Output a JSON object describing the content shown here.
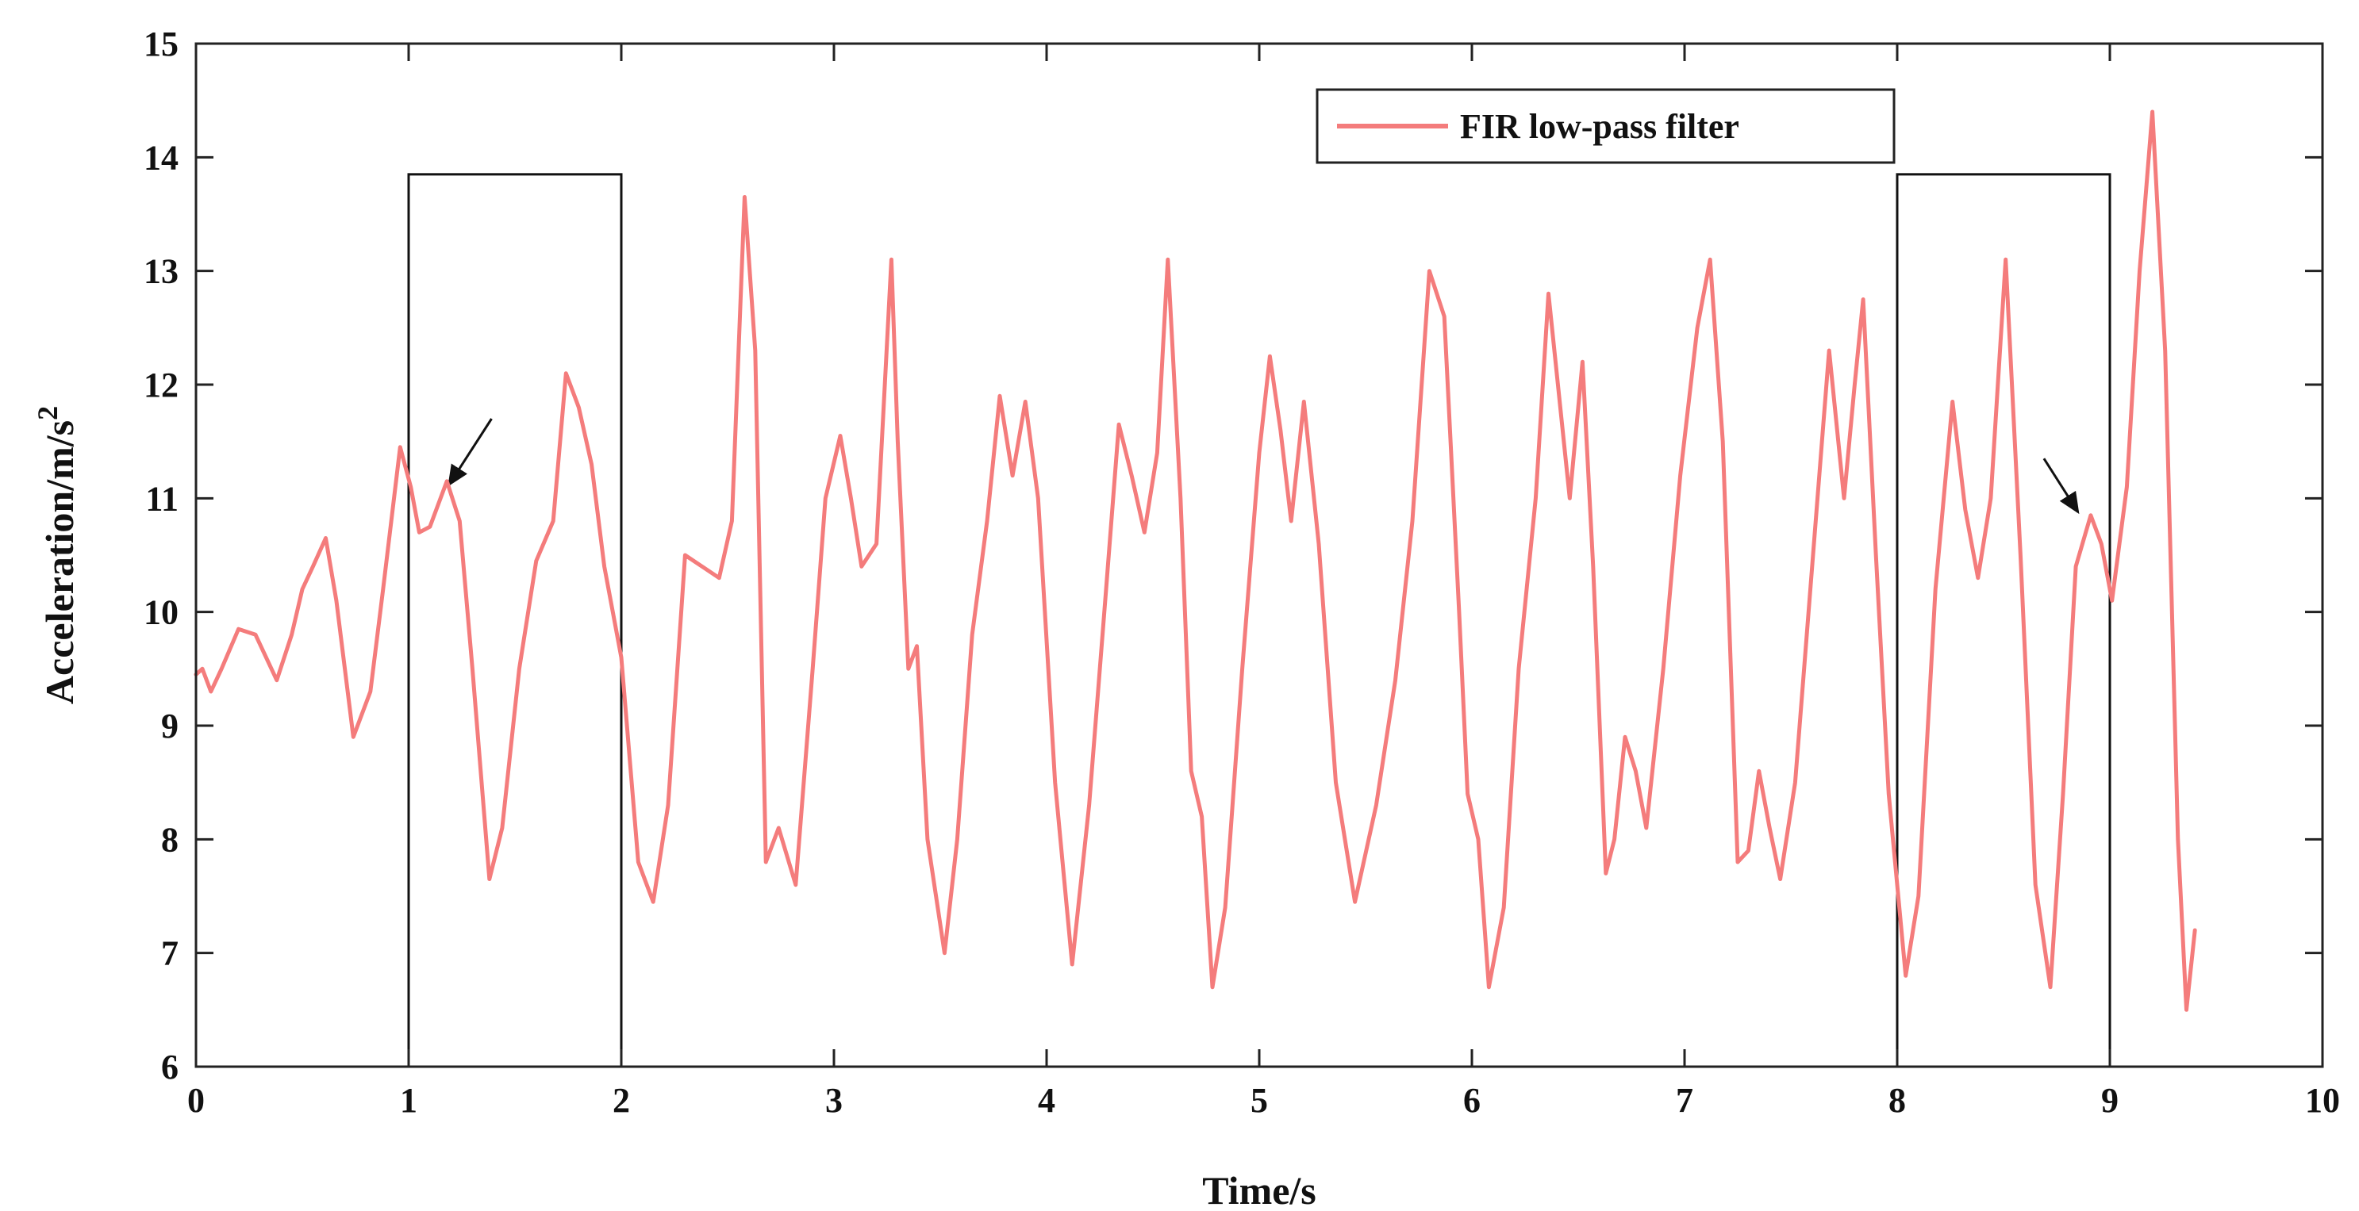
{
  "chart_data": {
    "type": "line",
    "title": "",
    "xlabel": "Time/s",
    "ylabel": "Acceleration/m/s",
    "ylabel_superscript": "2",
    "xlim": [
      0,
      10
    ],
    "ylim": [
      6,
      15
    ],
    "xticks": [
      "0",
      "1",
      "2",
      "3",
      "4",
      "5",
      "6",
      "7",
      "8",
      "9",
      "10"
    ],
    "yticks": [
      "6",
      "7",
      "8",
      "9",
      "10",
      "11",
      "12",
      "13",
      "14",
      "15"
    ],
    "grid": false,
    "legend": {
      "label": "FIR low-pass filter",
      "placement": "top-right"
    },
    "series": [
      {
        "name": "FIR low-pass filter",
        "color": "#f47c7c",
        "points": [
          [
            0.0,
            9.45
          ],
          [
            0.03,
            9.5
          ],
          [
            0.07,
            9.3
          ],
          [
            0.12,
            9.5
          ],
          [
            0.2,
            9.85
          ],
          [
            0.28,
            9.8
          ],
          [
            0.38,
            9.4
          ],
          [
            0.45,
            9.8
          ],
          [
            0.5,
            10.2
          ],
          [
            0.55,
            10.4
          ],
          [
            0.61,
            10.65
          ],
          [
            0.66,
            10.1
          ],
          [
            0.74,
            8.9
          ],
          [
            0.82,
            9.3
          ],
          [
            0.88,
            10.2
          ],
          [
            0.96,
            11.45
          ],
          [
            1.01,
            11.1
          ],
          [
            1.05,
            10.7
          ],
          [
            1.1,
            10.75
          ],
          [
            1.18,
            11.15
          ],
          [
            1.24,
            10.8
          ],
          [
            1.3,
            9.5
          ],
          [
            1.38,
            7.65
          ],
          [
            1.44,
            8.1
          ],
          [
            1.52,
            9.5
          ],
          [
            1.6,
            10.45
          ],
          [
            1.68,
            10.8
          ],
          [
            1.74,
            12.1
          ],
          [
            1.8,
            11.8
          ],
          [
            1.86,
            11.3
          ],
          [
            1.92,
            10.4
          ],
          [
            2.0,
            9.6
          ],
          [
            2.08,
            7.8
          ],
          [
            2.15,
            7.45
          ],
          [
            2.22,
            8.3
          ],
          [
            2.3,
            10.5
          ],
          [
            2.38,
            10.4
          ],
          [
            2.46,
            10.3
          ],
          [
            2.52,
            10.8
          ],
          [
            2.58,
            13.65
          ],
          [
            2.63,
            12.3
          ],
          [
            2.68,
            7.8
          ],
          [
            2.74,
            8.1
          ],
          [
            2.82,
            7.6
          ],
          [
            2.9,
            9.5
          ],
          [
            2.96,
            11.0
          ],
          [
            3.03,
            11.55
          ],
          [
            3.08,
            11.0
          ],
          [
            3.13,
            10.4
          ],
          [
            3.2,
            10.6
          ],
          [
            3.27,
            13.1
          ],
          [
            3.3,
            11.5
          ],
          [
            3.35,
            9.5
          ],
          [
            3.39,
            9.7
          ],
          [
            3.44,
            8.0
          ],
          [
            3.52,
            7.0
          ],
          [
            3.58,
            8.0
          ],
          [
            3.65,
            9.8
          ],
          [
            3.72,
            10.8
          ],
          [
            3.78,
            11.9
          ],
          [
            3.84,
            11.2
          ],
          [
            3.9,
            11.85
          ],
          [
            3.96,
            11.0
          ],
          [
            4.04,
            8.5
          ],
          [
            4.12,
            6.9
          ],
          [
            4.2,
            8.3
          ],
          [
            4.28,
            10.2
          ],
          [
            4.34,
            11.65
          ],
          [
            4.4,
            11.2
          ],
          [
            4.46,
            10.7
          ],
          [
            4.52,
            11.4
          ],
          [
            4.57,
            13.1
          ],
          [
            4.63,
            11.0
          ],
          [
            4.68,
            8.6
          ],
          [
            4.73,
            8.2
          ],
          [
            4.78,
            6.7
          ],
          [
            4.84,
            7.4
          ],
          [
            4.92,
            9.5
          ],
          [
            5.0,
            11.4
          ],
          [
            5.05,
            12.25
          ],
          [
            5.1,
            11.6
          ],
          [
            5.15,
            10.8
          ],
          [
            5.21,
            11.85
          ],
          [
            5.28,
            10.6
          ],
          [
            5.36,
            8.5
          ],
          [
            5.45,
            7.45
          ],
          [
            5.55,
            8.3
          ],
          [
            5.64,
            9.4
          ],
          [
            5.72,
            10.8
          ],
          [
            5.8,
            13.0
          ],
          [
            5.87,
            12.6
          ],
          [
            5.94,
            10.0
          ],
          [
            5.98,
            8.4
          ],
          [
            6.03,
            8.0
          ],
          [
            6.08,
            6.7
          ],
          [
            6.15,
            7.4
          ],
          [
            6.22,
            9.5
          ],
          [
            6.3,
            11.0
          ],
          [
            6.36,
            12.8
          ],
          [
            6.41,
            11.9
          ],
          [
            6.46,
            11.0
          ],
          [
            6.52,
            12.2
          ],
          [
            6.57,
            10.4
          ],
          [
            6.63,
            7.7
          ],
          [
            6.67,
            8.0
          ],
          [
            6.72,
            8.9
          ],
          [
            6.77,
            8.6
          ],
          [
            6.82,
            8.1
          ],
          [
            6.9,
            9.5
          ],
          [
            6.98,
            11.2
          ],
          [
            7.06,
            12.5
          ],
          [
            7.12,
            13.1
          ],
          [
            7.18,
            11.5
          ],
          [
            7.25,
            7.8
          ],
          [
            7.3,
            7.9
          ],
          [
            7.35,
            8.6
          ],
          [
            7.4,
            8.1
          ],
          [
            7.45,
            7.65
          ],
          [
            7.52,
            8.5
          ],
          [
            7.6,
            10.4
          ],
          [
            7.68,
            12.3
          ],
          [
            7.75,
            11.0
          ],
          [
            7.8,
            12.0
          ],
          [
            7.84,
            12.75
          ],
          [
            7.9,
            10.5
          ],
          [
            7.96,
            8.4
          ],
          [
            8.04,
            6.8
          ],
          [
            8.1,
            7.5
          ],
          [
            8.18,
            10.2
          ],
          [
            8.26,
            11.85
          ],
          [
            8.32,
            10.9
          ],
          [
            8.38,
            10.3
          ],
          [
            8.44,
            11.0
          ],
          [
            8.51,
            13.1
          ],
          [
            8.58,
            10.5
          ],
          [
            8.65,
            7.6
          ],
          [
            8.72,
            6.7
          ],
          [
            8.78,
            8.4
          ],
          [
            8.84,
            10.4
          ],
          [
            8.91,
            10.85
          ],
          [
            8.96,
            10.6
          ],
          [
            9.01,
            10.1
          ],
          [
            9.08,
            11.1
          ],
          [
            9.14,
            13.0
          ],
          [
            9.2,
            14.4
          ],
          [
            9.26,
            12.3
          ],
          [
            9.32,
            8.0
          ],
          [
            9.36,
            6.5
          ],
          [
            9.4,
            7.2
          ]
        ]
      }
    ],
    "annotations": [
      {
        "type": "box",
        "x": [
          1,
          2
        ],
        "y": [
          6,
          13.85
        ]
      },
      {
        "type": "box",
        "x": [
          8,
          9
        ],
        "y": [
          6,
          13.85
        ]
      },
      {
        "type": "arrow",
        "from": [
          1.39,
          11.7
        ],
        "to": [
          1.19,
          11.12
        ]
      },
      {
        "type": "arrow",
        "from": [
          8.69,
          11.35
        ],
        "to": [
          8.85,
          10.88
        ]
      }
    ]
  }
}
